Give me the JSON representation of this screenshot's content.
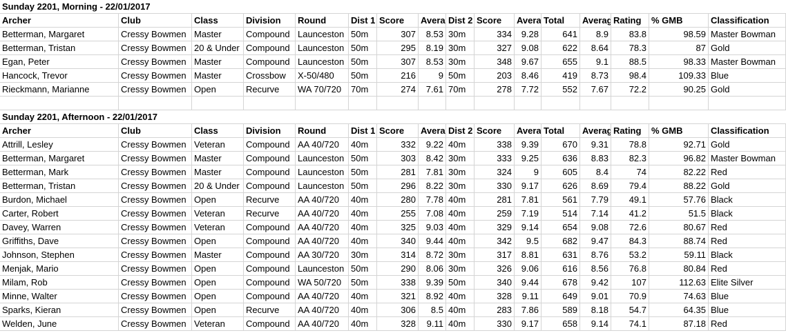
{
  "sections": [
    {
      "title": "Sunday 2201, Morning - 22/01/2017",
      "headers": [
        "Archer",
        "Club",
        "Class",
        "Division",
        "Round",
        "Dist 1",
        "Score",
        "Averag",
        "Dist 2",
        "Score",
        "Avera",
        "Total",
        "Averag",
        "Rating",
        "% GMB",
        "Classification"
      ],
      "rows": [
        [
          "Betterman, Margaret",
          "Cressy Bowmen",
          "Master",
          "Compound",
          "Launceston",
          "50m",
          "307",
          "8.53",
          "30m",
          "334",
          "9.28",
          "641",
          "8.9",
          "83.8",
          "98.59",
          "Master Bowman"
        ],
        [
          "Betterman, Tristan",
          "Cressy Bowmen",
          "20 & Under",
          "Compound",
          "Launceston",
          "50m",
          "295",
          "8.19",
          "30m",
          "327",
          "9.08",
          "622",
          "8.64",
          "78.3",
          "87",
          "Gold"
        ],
        [
          "Egan, Peter",
          "Cressy Bowmen",
          "Master",
          "Compound",
          "Launceston",
          "50m",
          "307",
          "8.53",
          "30m",
          "348",
          "9.67",
          "655",
          "9.1",
          "88.5",
          "98.33",
          "Master Bowman"
        ],
        [
          "Hancock, Trevor",
          "Cressy Bowmen",
          "Master",
          "Crossbow",
          "X-50/480",
          "50m",
          "216",
          "9",
          "50m",
          "203",
          "8.46",
          "419",
          "8.73",
          "98.4",
          "109.33",
          "Blue"
        ],
        [
          "Rieckmann, Marianne",
          "Cressy Bowmen",
          "Open",
          "Recurve",
          "WA 70/720",
          "70m",
          "274",
          "7.61",
          "70m",
          "278",
          "7.72",
          "552",
          "7.67",
          "72.2",
          "90.25",
          "Gold"
        ]
      ]
    },
    {
      "title": "Sunday 2201, Afternoon - 22/01/2017",
      "headers": [
        "Archer",
        "Club",
        "Class",
        "Division",
        "Round",
        "Dist 1",
        "Score",
        "Averag",
        "Dist 2",
        "Score",
        "Avera",
        "Total",
        "Averag",
        "Rating",
        "% GMB",
        "Classification"
      ],
      "rows": [
        [
          "Attrill, Lesley",
          "Cressy Bowmen",
          "Veteran",
          "Compound",
          "AA 40/720",
          "40m",
          "332",
          "9.22",
          "40m",
          "338",
          "9.39",
          "670",
          "9.31",
          "78.8",
          "92.71",
          "Gold"
        ],
        [
          "Betterman, Margaret",
          "Cressy Bowmen",
          "Master",
          "Compound",
          "Launceston",
          "50m",
          "303",
          "8.42",
          "30m",
          "333",
          "9.25",
          "636",
          "8.83",
          "82.3",
          "96.82",
          "Master Bowman"
        ],
        [
          "Betterman, Mark",
          "Cressy Bowmen",
          "Master",
          "Compound",
          "Launceston",
          "50m",
          "281",
          "7.81",
          "30m",
          "324",
          "9",
          "605",
          "8.4",
          "74",
          "82.22",
          "Red"
        ],
        [
          "Betterman, Tristan",
          "Cressy Bowmen",
          "20 & Under",
          "Compound",
          "Launceston",
          "50m",
          "296",
          "8.22",
          "30m",
          "330",
          "9.17",
          "626",
          "8.69",
          "79.4",
          "88.22",
          "Gold"
        ],
        [
          "Burdon, Michael",
          "Cressy Bowmen",
          "Open",
          "Recurve",
          "AA 40/720",
          "40m",
          "280",
          "7.78",
          "40m",
          "281",
          "7.81",
          "561",
          "7.79",
          "49.1",
          "57.76",
          "Black"
        ],
        [
          "Carter, Robert",
          "Cressy Bowmen",
          "Veteran",
          "Recurve",
          "AA 40/720",
          "40m",
          "255",
          "7.08",
          "40m",
          "259",
          "7.19",
          "514",
          "7.14",
          "41.2",
          "51.5",
          "Black"
        ],
        [
          "Davey, Warren",
          "Cressy Bowmen",
          "Veteran",
          "Compound",
          "AA 40/720",
          "40m",
          "325",
          "9.03",
          "40m",
          "329",
          "9.14",
          "654",
          "9.08",
          "72.6",
          "80.67",
          "Red"
        ],
        [
          "Griffiths, Dave",
          "Cressy Bowmen",
          "Open",
          "Compound",
          "AA 40/720",
          "40m",
          "340",
          "9.44",
          "40m",
          "342",
          "9.5",
          "682",
          "9.47",
          "84.3",
          "88.74",
          "Red"
        ],
        [
          "Johnson, Stephen",
          "Cressy Bowmen",
          "Master",
          "Compound",
          "AA 30/720",
          "30m",
          "314",
          "8.72",
          "30m",
          "317",
          "8.81",
          "631",
          "8.76",
          "53.2",
          "59.11",
          "Black"
        ],
        [
          "Menjak, Mario",
          "Cressy Bowmen",
          "Open",
          "Compound",
          "Launceston",
          "50m",
          "290",
          "8.06",
          "30m",
          "326",
          "9.06",
          "616",
          "8.56",
          "76.8",
          "80.84",
          "Red"
        ],
        [
          "Milam, Rob",
          "Cressy Bowmen",
          "Open",
          "Compound",
          "WA 50/720",
          "50m",
          "338",
          "9.39",
          "50m",
          "340",
          "9.44",
          "678",
          "9.42",
          "107",
          "112.63",
          "Elite Silver"
        ],
        [
          "Minne, Walter",
          "Cressy Bowmen",
          "Open",
          "Compound",
          "AA 40/720",
          "40m",
          "321",
          "8.92",
          "40m",
          "328",
          "9.11",
          "649",
          "9.01",
          "70.9",
          "74.63",
          "Blue"
        ],
        [
          "Sparks, Kieran",
          "Cressy Bowmen",
          "Open",
          "Recurve",
          "AA 40/720",
          "40m",
          "306",
          "8.5",
          "40m",
          "283",
          "7.86",
          "589",
          "8.18",
          "54.7",
          "64.35",
          "Blue"
        ],
        [
          "Welden, June",
          "Cressy Bowmen",
          "Veteran",
          "Compound",
          "AA 40/720",
          "40m",
          "328",
          "9.11",
          "40m",
          "330",
          "9.17",
          "658",
          "9.14",
          "74.1",
          "87.18",
          "Red"
        ]
      ]
    }
  ]
}
